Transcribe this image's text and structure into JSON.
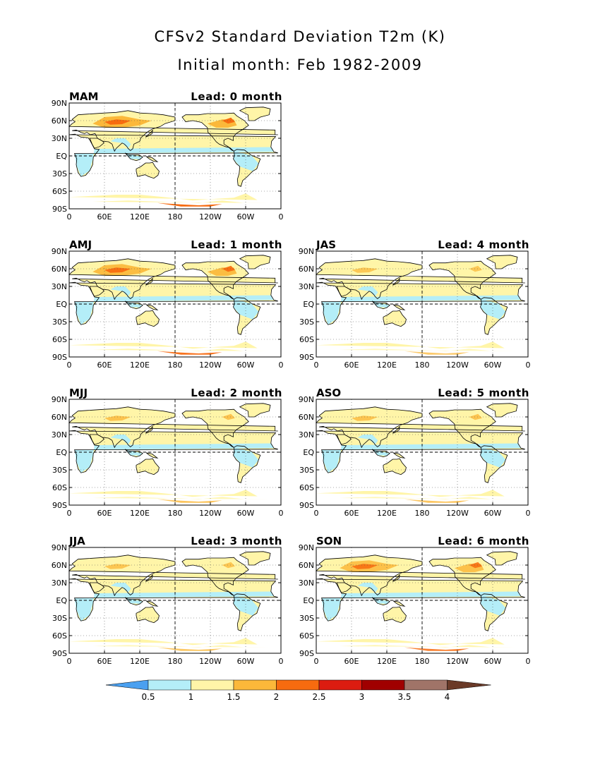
{
  "title": "CFSv2 Standard Deviation T2m (K)",
  "subtitle": "Initial month: Feb 1982-2009",
  "lat_ticks": [
    "90N",
    "60N",
    "30N",
    "EQ",
    "30S",
    "60S",
    "90S"
  ],
  "lon_ticks": [
    "0",
    "60E",
    "120E",
    "180",
    "120W",
    "60W",
    "0"
  ],
  "panels": [
    {
      "season": "MAM",
      "lead": "Lead: 0 month",
      "intensity": 1.0
    },
    {
      "season": "AMJ",
      "lead": "Lead: 1 month",
      "intensity": 0.85
    },
    {
      "season": "MJJ",
      "lead": "Lead: 2 month",
      "intensity": 0.6
    },
    {
      "season": "JJA",
      "lead": "Lead: 3 month",
      "intensity": 0.5
    },
    {
      "season": "JAS",
      "lead": "Lead: 4 month",
      "intensity": 0.45
    },
    {
      "season": "ASO",
      "lead": "Lead: 5 month",
      "intensity": 0.55
    },
    {
      "season": "SON",
      "lead": "Lead: 6 month",
      "intensity": 0.7
    }
  ],
  "colorbar": {
    "labels": [
      "0.5",
      "1",
      "1.5",
      "2",
      "2.5",
      "3",
      "3.5",
      "4"
    ],
    "colors": [
      "#4aa0f0",
      "#b4eef8",
      "#fff5a8",
      "#fbb83a",
      "#f76b0f",
      "#dc1c10",
      "#a00000",
      "#a07468",
      "#6a3a28"
    ]
  }
}
